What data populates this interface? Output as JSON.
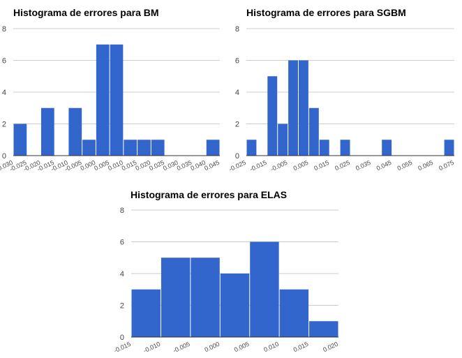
{
  "colors": {
    "bar": "#3366cc",
    "grid": "#cccccc",
    "axis": "#333333",
    "text": "#444444"
  },
  "chart_data": [
    {
      "type": "bar",
      "title": "Histograma de errores para BM",
      "xlabel": "",
      "ylabel": "",
      "ylim": [
        0,
        8
      ],
      "yticks": [
        "0",
        "2",
        "4",
        "6",
        "8"
      ],
      "xticks": [
        "-0.030",
        "-0.025",
        "-0.020",
        "-0.015",
        "-0.010",
        "-0.005",
        "0.000",
        "0.005",
        "0.010",
        "0.015",
        "0.020",
        "0.025",
        "0.030",
        "0.035",
        "0.040",
        "0.045"
      ],
      "values": [
        2,
        0,
        3,
        0,
        3,
        1,
        7,
        7,
        1,
        1,
        1,
        0,
        0,
        0,
        1
      ],
      "grid": true
    },
    {
      "type": "bar",
      "title": "Histograma de errores para SGBM",
      "xlabel": "",
      "ylabel": "",
      "ylim": [
        0,
        8
      ],
      "yticks": [
        "0",
        "2",
        "4",
        "6",
        "8"
      ],
      "xticks": [
        "-0.025",
        "-0.015",
        "-0.005",
        "0.005",
        "0.015",
        "0.025",
        "0.035",
        "0.045",
        "0.055",
        "0.065",
        "0.075"
      ],
      "values": [
        1,
        0,
        5,
        2,
        6,
        6,
        3,
        1,
        0,
        1,
        0,
        0,
        0,
        1,
        0,
        0,
        0,
        0,
        0,
        1
      ],
      "grid": true
    },
    {
      "type": "bar",
      "title": "Histograma de errores para ELAS",
      "xlabel": "",
      "ylabel": "",
      "ylim": [
        0,
        8
      ],
      "yticks": [
        "0",
        "2",
        "4",
        "6",
        "8"
      ],
      "xticks": [
        "-0.015",
        "-0.010",
        "-0.005",
        "0.000",
        "0.005",
        "0.010",
        "0.015",
        "0.020"
      ],
      "values": [
        3,
        5,
        5,
        4,
        6,
        3,
        1
      ],
      "grid": true
    }
  ]
}
